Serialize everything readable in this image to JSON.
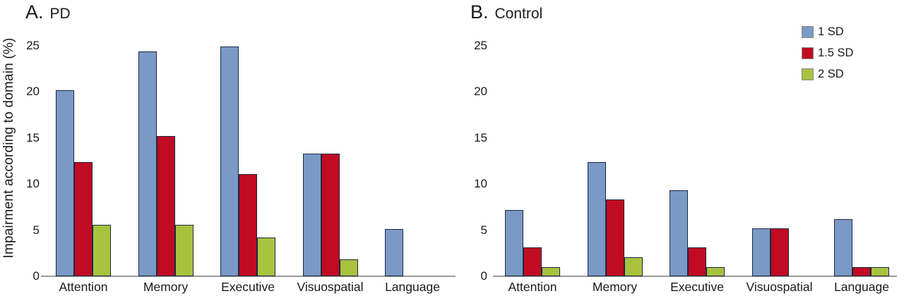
{
  "figure": {
    "ylabel": "Impairment according to domain (%)",
    "background": "#ffffff",
    "axis_color": "#9a9a9a",
    "bar_border_color": "#1b2940",
    "legend": [
      {
        "label": "1 SD",
        "color": "#7b99c7"
      },
      {
        "label": "1.5 SD",
        "color": "#c00b22"
      },
      {
        "label": "2 SD",
        "color": "#a8c23f"
      }
    ]
  },
  "chart_data": [
    {
      "type": "bar",
      "panel_letter": "A.",
      "title": "PD",
      "categories": [
        "Attention",
        "Memory",
        "Executive",
        "Visuospatial",
        "Language"
      ],
      "series": [
        {
          "name": "1 SD",
          "color": "#7b99c7",
          "values": [
            20.2,
            24.4,
            24.9,
            13.3,
            5.1
          ]
        },
        {
          "name": "1.5 SD",
          "color": "#c00b22",
          "values": [
            12.4,
            15.2,
            11.1,
            13.3,
            0
          ]
        },
        {
          "name": "2 SD",
          "color": "#a8c23f",
          "values": [
            5.6,
            5.6,
            4.2,
            1.8,
            0
          ]
        }
      ],
      "ylabel": "Impairment according to domain (%)",
      "xlabel": "",
      "ylim": [
        0,
        25
      ],
      "yticks": [
        0,
        5,
        10,
        15,
        20,
        25
      ],
      "grid": false,
      "legend_position": "outside-top-right"
    },
    {
      "type": "bar",
      "panel_letter": "B.",
      "title": "Control",
      "categories": [
        "Attention",
        "Memory",
        "Executive",
        "Visuospatial",
        "Language"
      ],
      "series": [
        {
          "name": "1 SD",
          "color": "#7b99c7",
          "values": [
            7.2,
            12.4,
            9.3,
            5.2,
            6.2
          ]
        },
        {
          "name": "1.5 SD",
          "color": "#c00b22",
          "values": [
            3.1,
            8.3,
            3.1,
            5.2,
            1.0
          ]
        },
        {
          "name": "2 SD",
          "color": "#a8c23f",
          "values": [
            1.0,
            2.1,
            1.0,
            0,
            1.0
          ]
        }
      ],
      "ylabel": "Impairment according to domain (%)",
      "xlabel": "",
      "ylim": [
        0,
        25
      ],
      "yticks": [
        0,
        5,
        10,
        15,
        20,
        25
      ],
      "grid": false,
      "legend_position": "outside-top-right"
    }
  ]
}
